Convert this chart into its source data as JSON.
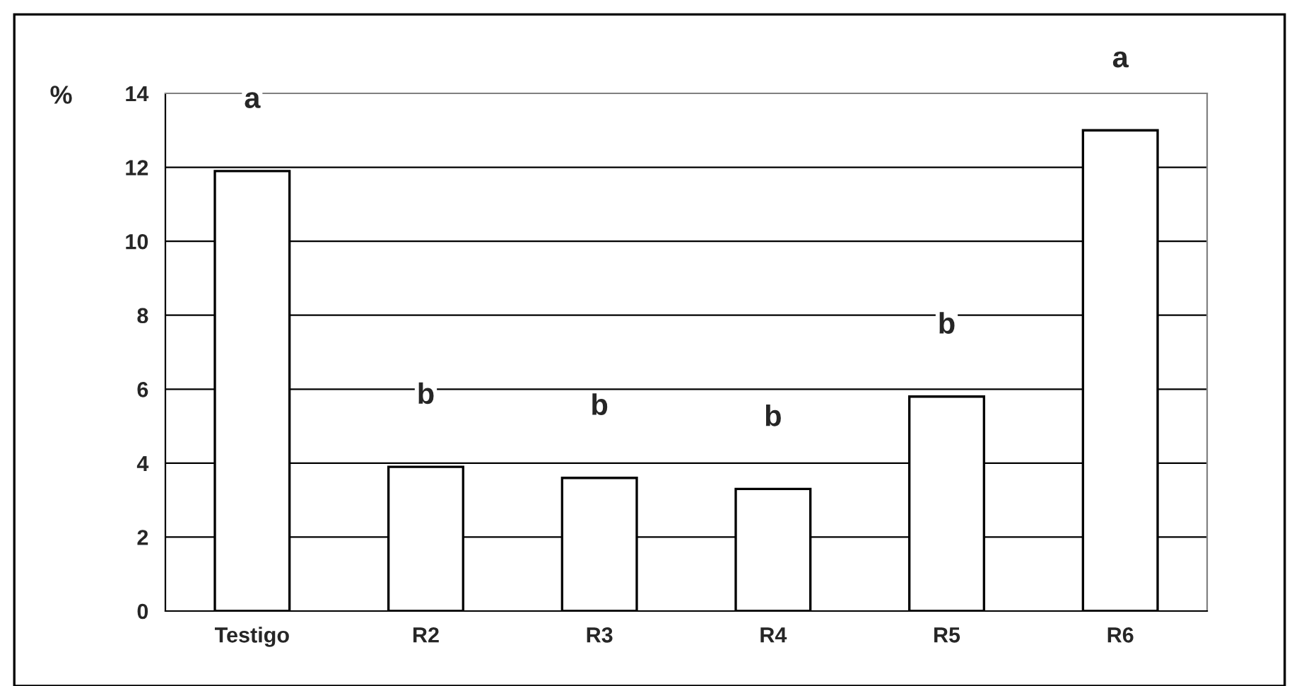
{
  "chart_data": {
    "type": "bar",
    "ylabel": "%",
    "categories": [
      "Testigo",
      "R2",
      "R3",
      "R4",
      "R5",
      "R6"
    ],
    "values": [
      11.9,
      3.9,
      3.6,
      3.3,
      5.8,
      13.0
    ],
    "color": "#ffffff",
    "ylim": [
      0,
      14
    ],
    "yticks": [
      0,
      2,
      4,
      6,
      8,
      10,
      12,
      14
    ],
    "grid": "y",
    "legend": false,
    "annotations": [
      "a",
      "b",
      "b",
      "b",
      "b",
      "a"
    ]
  }
}
